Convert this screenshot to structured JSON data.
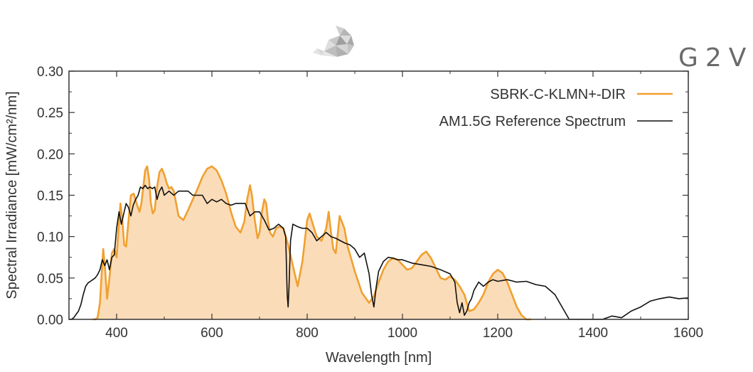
{
  "logo": {
    "text": "G2V"
  },
  "chart_data": {
    "type": "line",
    "xlabel": "Wavelength [nm]",
    "ylabel": "Spectral Irradiance [mW/cm²/nm]",
    "xlim": [
      300,
      1600
    ],
    "ylim": [
      0,
      0.3
    ],
    "xticks": [
      400,
      600,
      800,
      1000,
      1200,
      1400,
      1600
    ],
    "xtick_labels": [
      "400",
      "600",
      "800",
      "1000",
      "1200",
      "1400",
      "1600"
    ],
    "yticks": [
      0,
      0.05,
      0.1,
      0.15,
      0.2,
      0.25,
      0.3
    ],
    "ytick_labels": [
      "0.00",
      "0.05",
      "0.10",
      "0.15",
      "0.20",
      "0.25",
      "0.30"
    ],
    "legend_position": "top-right",
    "grid": false,
    "series": [
      {
        "name": "SBRK-C-KLMN+-DIR",
        "color": "#f0a030",
        "fill": "#fbdcb8",
        "style": "filled",
        "x": [
          350,
          355,
          360,
          365,
          368,
          372,
          376,
          380,
          385,
          390,
          395,
          400,
          404,
          408,
          412,
          416,
          420,
          425,
          430,
          436,
          442,
          448,
          452,
          456,
          460,
          464,
          468,
          472,
          476,
          480,
          485,
          490,
          495,
          500,
          505,
          510,
          515,
          520,
          525,
          530,
          540,
          550,
          560,
          570,
          580,
          590,
          600,
          610,
          620,
          630,
          640,
          650,
          660,
          668,
          674,
          680,
          684,
          690,
          696,
          700,
          705,
          710,
          714,
          718,
          722,
          728,
          735,
          742,
          750,
          760,
          770,
          780,
          790,
          796,
          800,
          805,
          812,
          820,
          830,
          840,
          845,
          850,
          855,
          860,
          868,
          878,
          885,
          890,
          900,
          915,
          930,
          940,
          950,
          960,
          970,
          980,
          990,
          1000,
          1010,
          1020,
          1030,
          1040,
          1050,
          1060,
          1070,
          1080,
          1090,
          1100,
          1110,
          1120,
          1130,
          1140,
          1150,
          1160,
          1170,
          1180,
          1190,
          1200,
          1210,
          1220,
          1230,
          1240,
          1250,
          1260,
          1270
        ],
        "y": [
          0.0,
          0.0,
          0.002,
          0.02,
          0.05,
          0.085,
          0.06,
          0.025,
          0.05,
          0.08,
          0.085,
          0.075,
          0.11,
          0.14,
          0.12,
          0.09,
          0.088,
          0.12,
          0.15,
          0.152,
          0.14,
          0.13,
          0.14,
          0.16,
          0.18,
          0.185,
          0.17,
          0.14,
          0.128,
          0.132,
          0.16,
          0.178,
          0.182,
          0.175,
          0.165,
          0.158,
          0.16,
          0.155,
          0.14,
          0.125,
          0.12,
          0.132,
          0.145,
          0.158,
          0.172,
          0.182,
          0.185,
          0.18,
          0.168,
          0.152,
          0.13,
          0.112,
          0.105,
          0.118,
          0.145,
          0.162,
          0.15,
          0.12,
          0.098,
          0.105,
          0.13,
          0.145,
          0.14,
          0.118,
          0.105,
          0.1,
          0.11,
          0.112,
          0.11,
          0.09,
          0.065,
          0.04,
          0.07,
          0.1,
          0.12,
          0.128,
          0.115,
          0.1,
          0.095,
          0.11,
          0.13,
          0.105,
          0.085,
          0.08,
          0.125,
          0.11,
          0.088,
          0.078,
          0.058,
          0.032,
          0.02,
          0.028,
          0.045,
          0.06,
          0.07,
          0.074,
          0.072,
          0.066,
          0.06,
          0.062,
          0.07,
          0.078,
          0.082,
          0.074,
          0.062,
          0.05,
          0.048,
          0.052,
          0.048,
          0.04,
          0.03,
          0.01,
          0.012,
          0.02,
          0.03,
          0.045,
          0.055,
          0.06,
          0.056,
          0.045,
          0.03,
          0.015,
          0.005,
          0.0,
          0.0
        ]
      },
      {
        "name": "AM1.5G Reference Spectrum",
        "color": "#111111",
        "style": "line",
        "x": [
          300,
          305,
          310,
          315,
          320,
          325,
          330,
          335,
          340,
          345,
          350,
          355,
          360,
          365,
          370,
          375,
          380,
          385,
          390,
          395,
          400,
          405,
          410,
          415,
          420,
          425,
          430,
          435,
          440,
          445,
          450,
          455,
          460,
          465,
          470,
          475,
          480,
          485,
          490,
          495,
          500,
          510,
          520,
          530,
          540,
          550,
          560,
          570,
          580,
          590,
          600,
          610,
          620,
          630,
          640,
          650,
          660,
          670,
          680,
          690,
          700,
          710,
          720,
          730,
          740,
          750,
          755,
          758,
          760,
          762,
          765,
          770,
          780,
          790,
          800,
          810,
          820,
          830,
          840,
          850,
          860,
          870,
          880,
          890,
          900,
          910,
          920,
          930,
          935,
          940,
          945,
          950,
          960,
          970,
          980,
          990,
          1000,
          1020,
          1040,
          1060,
          1080,
          1100,
          1110,
          1115,
          1120,
          1125,
          1130,
          1135,
          1140,
          1145,
          1150,
          1160,
          1170,
          1180,
          1190,
          1200,
          1220,
          1240,
          1260,
          1280,
          1300,
          1320,
          1340,
          1350,
          1360,
          1380,
          1400,
          1420,
          1440,
          1460,
          1480,
          1500,
          1520,
          1540,
          1560,
          1580,
          1600
        ],
        "y": [
          0.0,
          0.0,
          0.002,
          0.006,
          0.01,
          0.018,
          0.03,
          0.04,
          0.044,
          0.046,
          0.048,
          0.05,
          0.054,
          0.06,
          0.072,
          0.065,
          0.072,
          0.06,
          0.075,
          0.078,
          0.11,
          0.13,
          0.115,
          0.128,
          0.14,
          0.135,
          0.125,
          0.138,
          0.145,
          0.15,
          0.16,
          0.158,
          0.162,
          0.158,
          0.16,
          0.158,
          0.16,
          0.145,
          0.155,
          0.16,
          0.15,
          0.155,
          0.15,
          0.155,
          0.155,
          0.155,
          0.15,
          0.15,
          0.15,
          0.14,
          0.145,
          0.142,
          0.145,
          0.14,
          0.138,
          0.14,
          0.14,
          0.14,
          0.125,
          0.13,
          0.13,
          0.12,
          0.108,
          0.11,
          0.115,
          0.11,
          0.1,
          0.03,
          0.015,
          0.04,
          0.095,
          0.115,
          0.112,
          0.11,
          0.11,
          0.105,
          0.095,
          0.1,
          0.105,
          0.1,
          0.098,
          0.095,
          0.092,
          0.09,
          0.085,
          0.075,
          0.08,
          0.055,
          0.03,
          0.015,
          0.04,
          0.058,
          0.07,
          0.075,
          0.074,
          0.072,
          0.072,
          0.068,
          0.066,
          0.064,
          0.06,
          0.055,
          0.045,
          0.02,
          0.008,
          0.02,
          0.005,
          0.01,
          0.02,
          0.025,
          0.035,
          0.045,
          0.04,
          0.045,
          0.048,
          0.046,
          0.048,
          0.045,
          0.046,
          0.042,
          0.04,
          0.03,
          0.01,
          0.0,
          0.0,
          0.0,
          0.0,
          0.0,
          0.004,
          0.002,
          0.01,
          0.015,
          0.022,
          0.025,
          0.027,
          0.025,
          0.026
        ]
      }
    ]
  }
}
